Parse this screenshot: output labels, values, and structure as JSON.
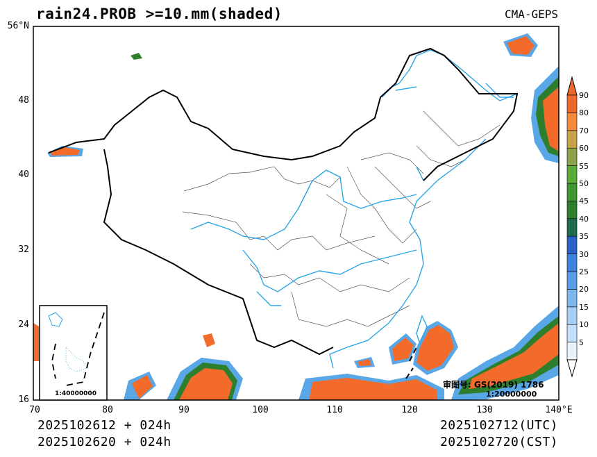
{
  "title": "rain24.PROB >=10.mm(shaded)",
  "source": "CMA-GEPS",
  "lat_labels": [
    "56°N",
    "48",
    "40",
    "32",
    "24",
    "16"
  ],
  "lon_labels": [
    "70",
    "80",
    "90",
    "100",
    "110",
    "120",
    "130",
    "140°E"
  ],
  "init_utc": "2025102612 + 024h",
  "init_cst": "2025102620 + 024h",
  "valid_utc": "2025102712(UTC)",
  "valid_cst": "2025102720(CST)",
  "map_review_no": "审图号: GS(2019) 1786",
  "main_scale": "1:20000000",
  "inset_scale": "1:40000000",
  "colorbar": {
    "levels": [
      "5",
      "10",
      "15",
      "20",
      "25",
      "30",
      "35",
      "40",
      "45",
      "50",
      "55",
      "60",
      "70",
      "80",
      "90"
    ],
    "colors": [
      "#e8f2fb",
      "#c2defa",
      "#a5cff5",
      "#7db8ef",
      "#5a9fe6",
      "#3d83dc",
      "#2a63c6",
      "#1d6a4d",
      "#2d7f2e",
      "#3f982f",
      "#5aaa3a",
      "#8ca34a",
      "#c9a34a",
      "#f2893d",
      "#ee6a2c"
    ]
  },
  "colors": {
    "coast": "#2aa6e6",
    "border": "#000000",
    "province": "#555555",
    "rain_high": "#f26b2a"
  }
}
